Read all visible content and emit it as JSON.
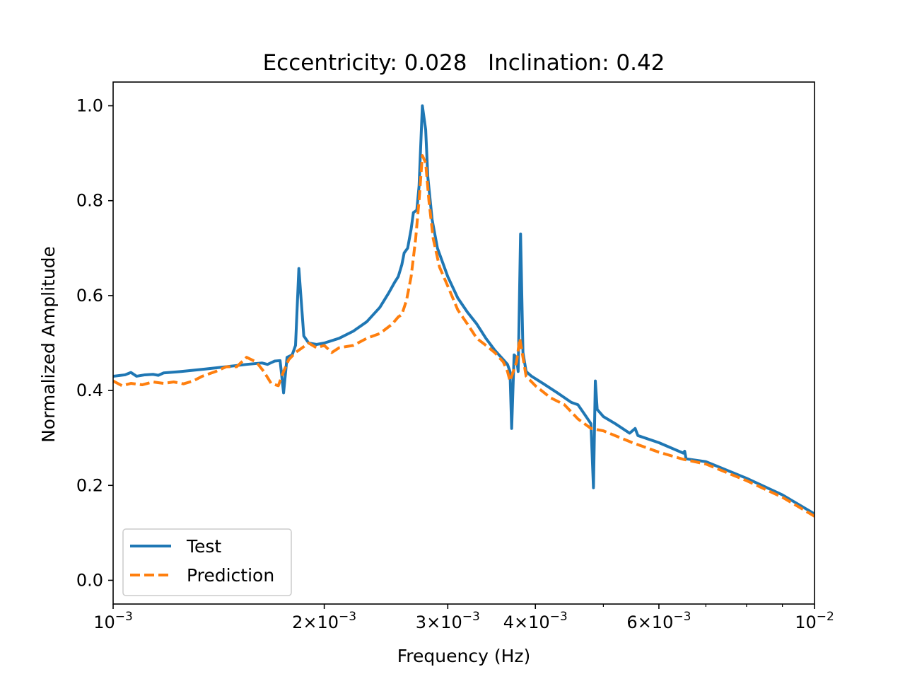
{
  "chart_data": {
    "type": "line",
    "title": "Eccentricity: 0.028   Inclination: 0.42",
    "xlabel": "Frequency (Hz)",
    "ylabel": "Normalized Amplitude",
    "xscale": "log",
    "xlim": [
      0.001,
      0.01
    ],
    "ylim": [
      -0.05,
      1.05
    ],
    "x_ticks": [
      {
        "value": 0.001,
        "base": "10",
        "exp": "−3",
        "coef": ""
      },
      {
        "value": 0.002,
        "base": "10",
        "exp": "−3",
        "coef": "2×"
      },
      {
        "value": 0.003,
        "base": "10",
        "exp": "−3",
        "coef": "3×"
      },
      {
        "value": 0.004,
        "base": "10",
        "exp": "−3",
        "coef": "4×"
      },
      {
        "value": 0.006,
        "base": "10",
        "exp": "−3",
        "coef": "6×"
      },
      {
        "value": 0.01,
        "base": "10",
        "exp": "−2",
        "coef": ""
      }
    ],
    "x_minor_ticks": [
      0.005,
      0.007,
      0.008,
      0.009
    ],
    "y_ticks": [
      "0.0",
      "0.2",
      "0.4",
      "0.6",
      "0.8",
      "1.0"
    ],
    "grid": false,
    "legend_position": "lower-left",
    "series": [
      {
        "name": "Test",
        "color": "#1f77b4",
        "style": "solid",
        "points": [
          [
            0.001,
            0.43
          ],
          [
            0.00104,
            0.433
          ],
          [
            0.00106,
            0.438
          ],
          [
            0.00108,
            0.43
          ],
          [
            0.00111,
            0.433
          ],
          [
            0.00114,
            0.434
          ],
          [
            0.00116,
            0.432
          ],
          [
            0.00118,
            0.437
          ],
          [
            0.00125,
            0.44
          ],
          [
            0.00135,
            0.445
          ],
          [
            0.00145,
            0.45
          ],
          [
            0.00155,
            0.455
          ],
          [
            0.00163,
            0.458
          ],
          [
            0.00166,
            0.455
          ],
          [
            0.0017,
            0.462
          ],
          [
            0.00173,
            0.463
          ],
          [
            0.00175,
            0.395
          ],
          [
            0.00177,
            0.47
          ],
          [
            0.0018,
            0.475
          ],
          [
            0.00182,
            0.495
          ],
          [
            0.00184,
            0.657
          ],
          [
            0.00187,
            0.515
          ],
          [
            0.0019,
            0.5
          ],
          [
            0.00195,
            0.497
          ],
          [
            0.002,
            0.5
          ],
          [
            0.0021,
            0.51
          ],
          [
            0.0022,
            0.525
          ],
          [
            0.0023,
            0.545
          ],
          [
            0.0024,
            0.575
          ],
          [
            0.00247,
            0.605
          ],
          [
            0.00252,
            0.628
          ],
          [
            0.00255,
            0.64
          ],
          [
            0.00258,
            0.665
          ],
          [
            0.0026,
            0.69
          ],
          [
            0.00263,
            0.7
          ],
          [
            0.00266,
            0.74
          ],
          [
            0.00268,
            0.775
          ],
          [
            0.00271,
            0.78
          ],
          [
            0.00273,
            0.83
          ],
          [
            0.00276,
            1.0
          ],
          [
            0.00279,
            0.95
          ],
          [
            0.00281,
            0.85
          ],
          [
            0.00285,
            0.76
          ],
          [
            0.0029,
            0.7
          ],
          [
            0.003,
            0.64
          ],
          [
            0.0031,
            0.595
          ],
          [
            0.0032,
            0.565
          ],
          [
            0.0033,
            0.54
          ],
          [
            0.0034,
            0.51
          ],
          [
            0.0035,
            0.485
          ],
          [
            0.0036,
            0.465
          ],
          [
            0.00365,
            0.455
          ],
          [
            0.00368,
            0.44
          ],
          [
            0.0037,
            0.32
          ],
          [
            0.00373,
            0.475
          ],
          [
            0.00376,
            0.47
          ],
          [
            0.00378,
            0.44
          ],
          [
            0.00381,
            0.73
          ],
          [
            0.00384,
            0.48
          ],
          [
            0.00388,
            0.44
          ],
          [
            0.00395,
            0.43
          ],
          [
            0.0041,
            0.415
          ],
          [
            0.0043,
            0.395
          ],
          [
            0.0045,
            0.375
          ],
          [
            0.0046,
            0.37
          ],
          [
            0.0047,
            0.35
          ],
          [
            0.0048,
            0.33
          ],
          [
            0.00484,
            0.195
          ],
          [
            0.00487,
            0.42
          ],
          [
            0.0049,
            0.36
          ],
          [
            0.005,
            0.345
          ],
          [
            0.0052,
            0.33
          ],
          [
            0.00545,
            0.31
          ],
          [
            0.00555,
            0.32
          ],
          [
            0.0056,
            0.305
          ],
          [
            0.006,
            0.29
          ],
          [
            0.0065,
            0.268
          ],
          [
            0.00653,
            0.272
          ],
          [
            0.00656,
            0.256
          ],
          [
            0.007,
            0.25
          ],
          [
            0.008,
            0.215
          ],
          [
            0.009,
            0.18
          ],
          [
            0.01,
            0.14
          ]
        ]
      },
      {
        "name": "Prediction",
        "color": "#ff7f0e",
        "style": "dashed",
        "points": [
          [
            0.001,
            0.42
          ],
          [
            0.00103,
            0.41
          ],
          [
            0.00106,
            0.415
          ],
          [
            0.0011,
            0.412
          ],
          [
            0.00114,
            0.418
          ],
          [
            0.00118,
            0.415
          ],
          [
            0.00122,
            0.418
          ],
          [
            0.00126,
            0.414
          ],
          [
            0.0013,
            0.42
          ],
          [
            0.00134,
            0.43
          ],
          [
            0.0014,
            0.44
          ],
          [
            0.00145,
            0.45
          ],
          [
            0.0015,
            0.45
          ],
          [
            0.00155,
            0.47
          ],
          [
            0.0016,
            0.46
          ],
          [
            0.00164,
            0.44
          ],
          [
            0.00168,
            0.415
          ],
          [
            0.00172,
            0.41
          ],
          [
            0.00175,
            0.44
          ],
          [
            0.00178,
            0.465
          ],
          [
            0.00182,
            0.48
          ],
          [
            0.00186,
            0.49
          ],
          [
            0.0019,
            0.5
          ],
          [
            0.00195,
            0.49
          ],
          [
            0.002,
            0.495
          ],
          [
            0.00205,
            0.48
          ],
          [
            0.0021,
            0.49
          ],
          [
            0.0022,
            0.495
          ],
          [
            0.0023,
            0.51
          ],
          [
            0.0024,
            0.52
          ],
          [
            0.0025,
            0.54
          ],
          [
            0.00255,
            0.555
          ],
          [
            0.00258,
            0.56
          ],
          [
            0.00262,
            0.59
          ],
          [
            0.00266,
            0.64
          ],
          [
            0.0027,
            0.72
          ],
          [
            0.00273,
            0.8
          ],
          [
            0.00276,
            0.895
          ],
          [
            0.00279,
            0.88
          ],
          [
            0.00282,
            0.8
          ],
          [
            0.00286,
            0.72
          ],
          [
            0.00292,
            0.66
          ],
          [
            0.003,
            0.62
          ],
          [
            0.0031,
            0.57
          ],
          [
            0.0032,
            0.54
          ],
          [
            0.0033,
            0.51
          ],
          [
            0.0034,
            0.495
          ],
          [
            0.0035,
            0.48
          ],
          [
            0.0036,
            0.46
          ],
          [
            0.00365,
            0.44
          ],
          [
            0.00368,
            0.42
          ],
          [
            0.00372,
            0.44
          ],
          [
            0.00376,
            0.46
          ],
          [
            0.0038,
            0.51
          ],
          [
            0.00384,
            0.47
          ],
          [
            0.00388,
            0.43
          ],
          [
            0.004,
            0.41
          ],
          [
            0.0042,
            0.385
          ],
          [
            0.0044,
            0.37
          ],
          [
            0.0046,
            0.34
          ],
          [
            0.0048,
            0.32
          ],
          [
            0.005,
            0.315
          ],
          [
            0.0055,
            0.29
          ],
          [
            0.006,
            0.27
          ],
          [
            0.0065,
            0.255
          ],
          [
            0.007,
            0.245
          ],
          [
            0.008,
            0.21
          ],
          [
            0.009,
            0.175
          ],
          [
            0.01,
            0.135
          ]
        ]
      }
    ]
  }
}
